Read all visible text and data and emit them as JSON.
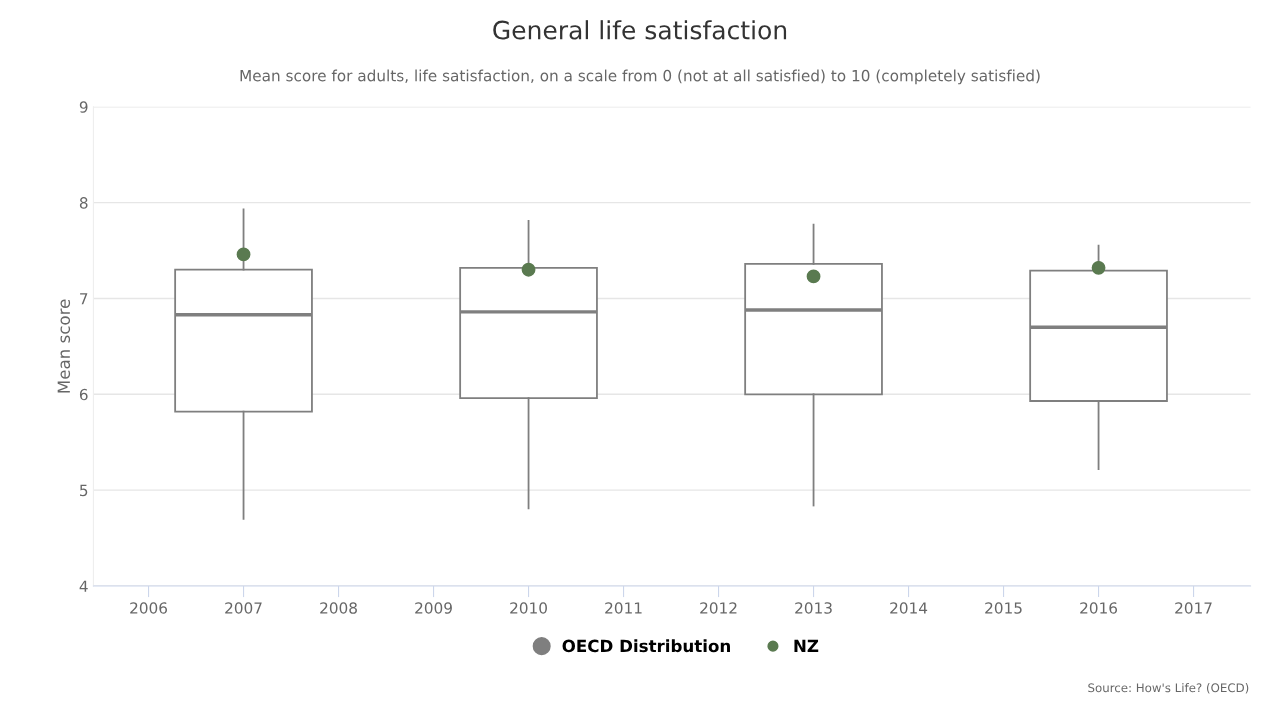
{
  "chart_data": {
    "type": "box",
    "title": "General life satisfaction",
    "subtitle": "Mean score for adults, life satisfaction, on a scale from 0 (not at all satisfied) to 10 (completely satisfied)",
    "ylabel": "Mean score",
    "x": [
      2007,
      2010,
      2013,
      2016
    ],
    "xlim": [
      2005.42,
      2017.6
    ],
    "xticks": [
      2006,
      2007,
      2008,
      2009,
      2010,
      2011,
      2012,
      2013,
      2014,
      2015,
      2016,
      2017
    ],
    "ylim": [
      4,
      9
    ],
    "yticks": [
      4,
      5,
      6,
      7,
      8,
      9
    ],
    "grid": "y",
    "legend": "bottom",
    "series": [
      {
        "name": "OECD Distribution",
        "color": "#7f7f7f",
        "boxes": [
          {
            "low": 4.7,
            "q1": 5.82,
            "median": 6.83,
            "q3": 7.3,
            "high": 7.93
          },
          {
            "low": 4.81,
            "q1": 5.96,
            "median": 6.86,
            "q3": 7.32,
            "high": 7.81
          },
          {
            "low": 4.84,
            "q1": 6.0,
            "median": 6.88,
            "q3": 7.36,
            "high": 7.77
          },
          {
            "low": 5.22,
            "q1": 5.93,
            "median": 6.7,
            "q3": 7.29,
            "high": 7.55
          }
        ]
      },
      {
        "name": "NZ",
        "type": "scatter",
        "color": "#5a7a50",
        "marker": "circle",
        "x": [
          2007,
          2010,
          2013,
          2016
        ],
        "values": [
          7.46,
          7.3,
          7.23,
          7.32
        ]
      }
    ],
    "annotations": [
      "Source: How's Life? (OECD)"
    ]
  }
}
